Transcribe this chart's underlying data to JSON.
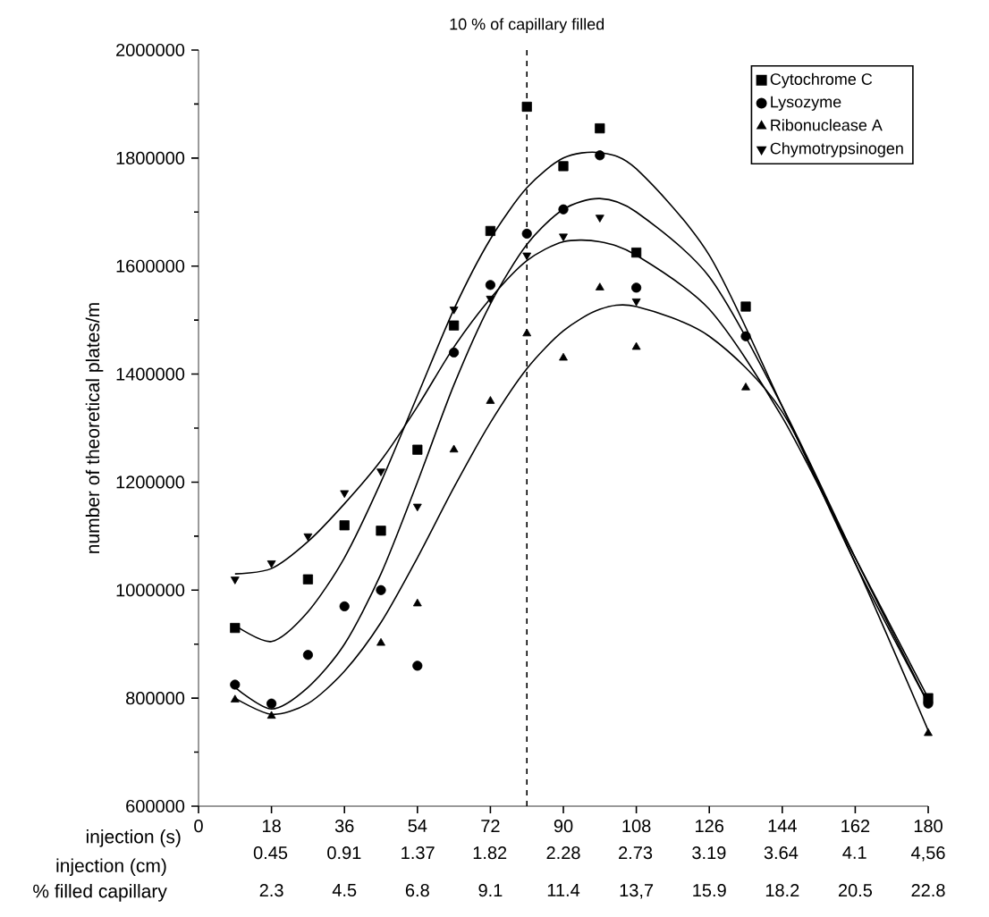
{
  "chart_data": {
    "type": "scatter",
    "ylabel": "number of theoretical plates/m",
    "xlabel": "injection (s)",
    "xlim": [
      0,
      180
    ],
    "xticks": [
      0,
      18,
      36,
      54,
      72,
      90,
      108,
      126,
      144,
      162,
      180
    ],
    "x2lim": [
      0,
      4.56
    ],
    "x2label": "injection (cm)",
    "x2ticks": [
      0.45,
      0.91,
      1.37,
      1.82,
      2.28,
      2.73,
      3.19,
      3.64,
      4.1,
      {
        "value": 4.56,
        "label": "4,56"
      }
    ],
    "annotations": [
      "% filled capillary",
      "2.3",
      "4.5",
      "6.8",
      "9.1",
      "11.4",
      "13,7",
      "15.9",
      "18.2",
      "20.5",
      "22.8"
    ],
    "ylim": [
      600000,
      2000000
    ],
    "yticks": [
      600000,
      800000,
      1000000,
      1200000,
      1400000,
      1600000,
      1800000,
      2000000
    ],
    "legend": "top right",
    "grid": false,
    "ref_lines": [
      {
        "axis": "x",
        "value": 81,
        "label": "10 % of capillary filled",
        "line_style": "dashed",
        "color": "#000000"
      }
    ],
    "series": [
      {
        "name": "Cytochrome C",
        "marker": "square",
        "color": "#000000",
        "x": [
          9,
          27,
          36,
          45,
          54,
          63,
          72,
          81,
          90,
          99,
          108,
          135,
          180
        ],
        "values": [
          930000,
          1020000,
          1120000,
          1110000,
          1260000,
          1490000,
          1665000,
          1895000,
          1785000,
          1855000,
          1625000,
          1525000,
          800000
        ]
      },
      {
        "name": "Lysozyme",
        "marker": "circle",
        "color": "#000000",
        "x": [
          9,
          18,
          27,
          36,
          45,
          54,
          63,
          72,
          81,
          90,
          99,
          108,
          135,
          180
        ],
        "values": [
          825000,
          790000,
          880000,
          970000,
          1000000,
          860000,
          1440000,
          1565000,
          1660000,
          1705000,
          1805000,
          1560000,
          1470000,
          790000
        ]
      },
      {
        "name": "Ribonuclease A",
        "marker": "triangle",
        "color": "#000000",
        "x": [
          9,
          18,
          45,
          54,
          63,
          72,
          81,
          90,
          99,
          108,
          135,
          180
        ],
        "values": [
          797000,
          767000,
          902000,
          975000,
          1260000,
          1350000,
          1475000,
          1430000,
          1560000,
          1450000,
          1375000,
          735000
        ]
      },
      {
        "name": "Chymotrypsinogen",
        "marker": "triangle_down",
        "color": "#000000",
        "x": [
          9,
          18,
          27,
          36,
          45,
          54,
          63,
          72,
          81,
          90,
          99,
          108
        ],
        "values": [
          1020000,
          1050000,
          1100000,
          1180000,
          1220000,
          1155000,
          1520000,
          1540000,
          1620000,
          1655000,
          1690000,
          1535000
        ]
      },
      {
        "type": "line",
        "marker": "none",
        "line_style": "solid",
        "color": "#000000",
        "x": [
          9,
          18,
          27,
          36,
          45,
          54,
          63,
          72,
          81,
          90,
          99,
          108,
          126,
          144,
          162,
          180
        ],
        "values": [
          935000,
          905000,
          960000,
          1060000,
          1200000,
          1360000,
          1520000,
          1650000,
          1745000,
          1800000,
          1810000,
          1780000,
          1620000,
          1340000,
          1050000,
          790000
        ]
      },
      {
        "type": "line",
        "marker": "none",
        "line_style": "solid",
        "color": "#000000",
        "x": [
          9,
          18,
          27,
          36,
          45,
          54,
          63,
          72,
          81,
          90,
          99,
          108,
          126,
          144,
          162,
          180
        ],
        "values": [
          820000,
          780000,
          820000,
          900000,
          1030000,
          1200000,
          1380000,
          1530000,
          1640000,
          1705000,
          1725000,
          1700000,
          1580000,
          1340000,
          1060000,
          790000
        ]
      },
      {
        "type": "line",
        "marker": "none",
        "line_style": "solid",
        "color": "#000000",
        "x": [
          9,
          18,
          27,
          36,
          45,
          54,
          63,
          72,
          81,
          90,
          99,
          108,
          126,
          144,
          162,
          180
        ],
        "values": [
          1030000,
          1040000,
          1090000,
          1160000,
          1240000,
          1340000,
          1450000,
          1540000,
          1610000,
          1645000,
          1645000,
          1620000,
          1520000,
          1320000,
          1060000,
          800000
        ]
      },
      {
        "type": "line",
        "marker": "none",
        "line_style": "solid",
        "color": "#000000",
        "x": [
          9,
          18,
          27,
          36,
          45,
          54,
          63,
          72,
          81,
          90,
          99,
          108,
          126,
          144,
          162,
          180
        ],
        "values": [
          800000,
          770000,
          790000,
          850000,
          940000,
          1060000,
          1190000,
          1310000,
          1410000,
          1480000,
          1520000,
          1525000,
          1470000,
          1330000,
          1050000,
          740000
        ]
      }
    ]
  }
}
